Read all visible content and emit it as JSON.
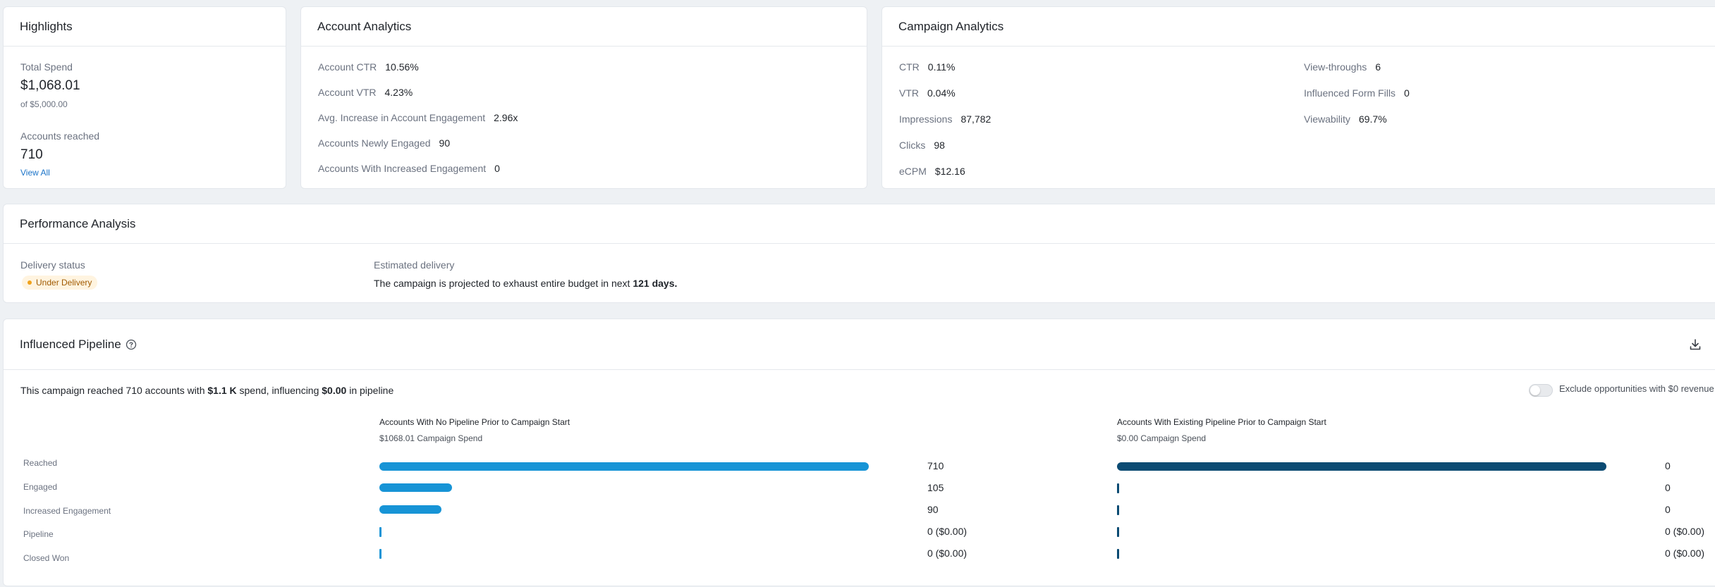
{
  "highlights": {
    "title": "Highlights",
    "total_spend_label": "Total Spend",
    "total_spend_value": "$1,068.01",
    "budget_text": "of $5,000.00",
    "accounts_reached_label": "Accounts reached",
    "accounts_reached_value": "710",
    "view_all_label": "View All"
  },
  "account_analytics": {
    "title": "Account Analytics",
    "metrics": [
      {
        "label": "Account CTR",
        "value": "10.56%"
      },
      {
        "label": "Account VTR",
        "value": "4.23%"
      },
      {
        "label": "Avg. Increase in Account Engagement",
        "value": "2.96x"
      },
      {
        "label": "Accounts Newly Engaged",
        "value": "90"
      },
      {
        "label": "Accounts With Increased Engagement",
        "value": "0"
      }
    ]
  },
  "campaign_analytics": {
    "title": "Campaign Analytics",
    "metrics_left": [
      {
        "label": "CTR",
        "value": "0.11%"
      },
      {
        "label": "VTR",
        "value": "0.04%"
      },
      {
        "label": "Impressions",
        "value": "87,782"
      },
      {
        "label": "Clicks",
        "value": "98"
      },
      {
        "label": "eCPM",
        "value": "$12.16"
      }
    ],
    "metrics_right": [
      {
        "label": "View-throughs",
        "value": "6"
      },
      {
        "label": "Influenced Form Fills",
        "value": "0"
      },
      {
        "label": "Viewability",
        "value": "69.7%"
      }
    ]
  },
  "performance": {
    "title": "Performance Analysis",
    "delivery_status_label": "Delivery status",
    "delivery_status_value": "Under Delivery",
    "estimated_delivery_label": "Estimated delivery",
    "estimated_text_pre": "The campaign is projected to exhaust entire budget in next ",
    "estimated_days": "121 days."
  },
  "pipeline": {
    "title": "Influenced Pipeline",
    "summary_pre": "This campaign reached 710 accounts with ",
    "summary_spend": "$1.1 K",
    "summary_mid": " spend, influencing ",
    "summary_pipeline": "$0.00",
    "summary_post": " in pipeline",
    "toggle_label": "Exclude opportunities with $0 revenue",
    "left_header": "Accounts With No Pipeline Prior to Campaign Start",
    "left_sub": "$1068.01 Campaign Spend",
    "right_header": "Accounts With Existing Pipeline Prior to Campaign Start",
    "right_sub": "$0.00 Campaign Spend",
    "rows": [
      {
        "label": "Reached",
        "left_value": "710",
        "left_fraction": 1.0,
        "right_value": "0",
        "right_fraction": 1.0
      },
      {
        "label": "Engaged",
        "left_value": "105",
        "left_fraction": 0.148,
        "right_value": "0",
        "right_fraction": 0
      },
      {
        "label": "Increased Engagement",
        "left_value": "90",
        "left_fraction": 0.127,
        "right_value": "0",
        "right_fraction": 0
      },
      {
        "label": "Pipeline",
        "left_value": "0 ($0.00)",
        "left_fraction": 0,
        "right_value": "0 ($0.00)",
        "right_fraction": 0
      },
      {
        "label": "Closed Won",
        "left_value": "0 ($0.00)",
        "left_fraction": 0,
        "right_value": "0 ($0.00)",
        "right_fraction": 0
      }
    ]
  },
  "colors": {
    "left_bar": "#1794d6",
    "right_bar": "#0b4b73",
    "badge_bg": "#fff4e0",
    "badge_dot": "#f0a21b"
  }
}
